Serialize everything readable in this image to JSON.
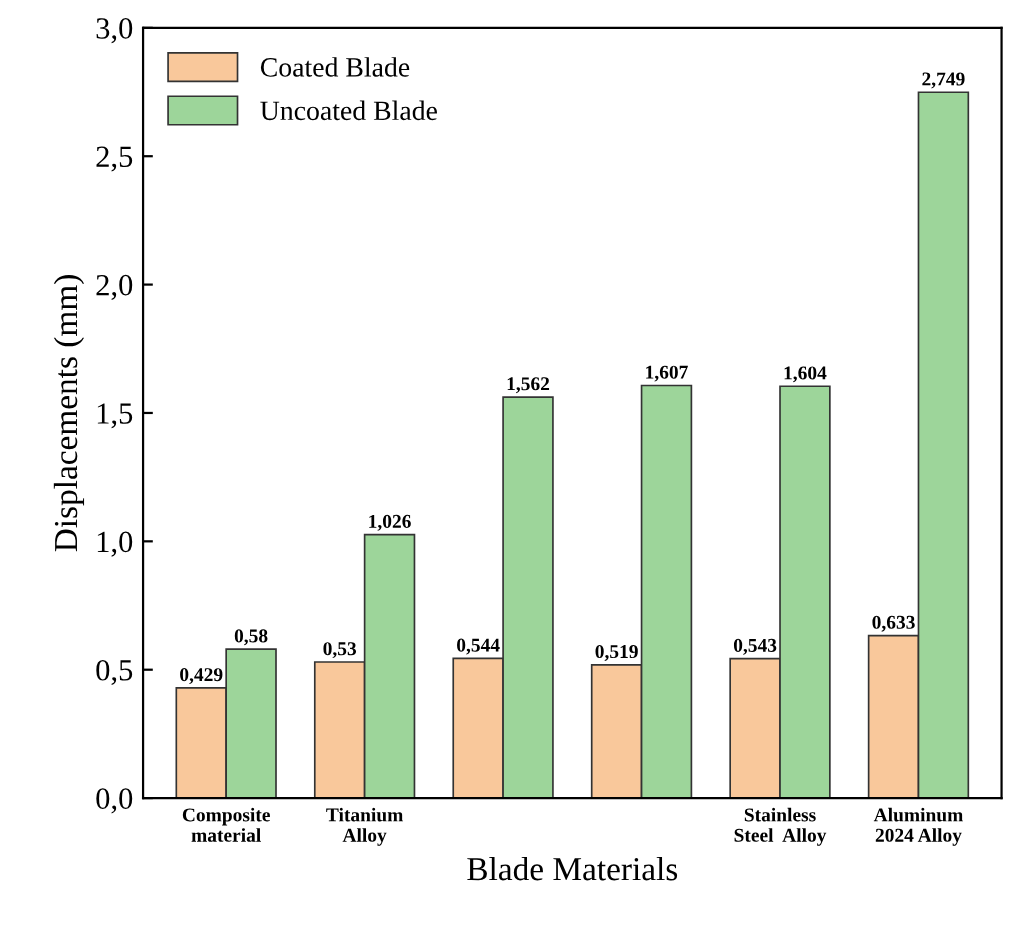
{
  "chart_data": {
    "type": "bar",
    "xlabel": "Blade Materials",
    "ylabel": "Displacements (mm)",
    "categories": [
      "Composite\nmaterial",
      "Titanium\nAlloy",
      null,
      null,
      "Stainless\nSteel  Alloy",
      "Aluminum\n2024 Alloy"
    ],
    "series": [
      {
        "name": "Coated Blade",
        "color": "#f9c89b",
        "values": [
          0.429,
          0.53,
          0.544,
          0.519,
          0.543,
          0.633
        ],
        "value_labels": [
          "0,429",
          "0,53",
          "0,544",
          "0,519",
          "0,543",
          "0,633"
        ]
      },
      {
        "name": "Uncoated Blade",
        "color": "#9dd59a",
        "values": [
          0.58,
          1.026,
          1.562,
          1.607,
          1.604,
          2.749
        ],
        "value_labels": [
          "0,58",
          "1,026",
          "1,562",
          "1,607",
          "1,604",
          "2,749"
        ]
      }
    ],
    "ylim": [
      0,
      3.0
    ],
    "yticks": [
      {
        "value": 0,
        "label": "0,0"
      },
      {
        "value": 0.5,
        "label": "0,5"
      },
      {
        "value": 1.0,
        "label": "1,0"
      },
      {
        "value": 1.5,
        "label": "1,5"
      },
      {
        "value": 2.0,
        "label": "2,0"
      },
      {
        "value": 2.5,
        "label": "2,5"
      },
      {
        "value": 3.0,
        "label": "3,0"
      }
    ],
    "legend": "top left",
    "grid": false
  }
}
